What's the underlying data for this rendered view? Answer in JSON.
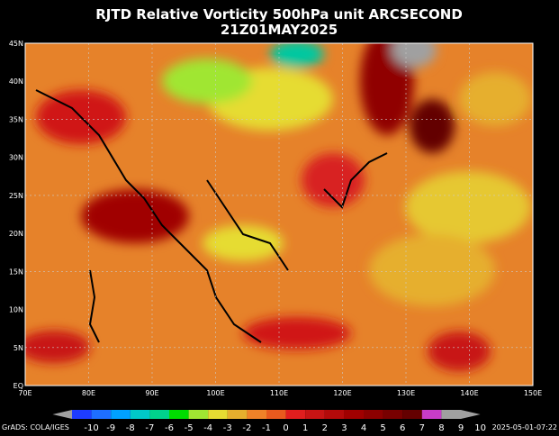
{
  "title": {
    "line1": "RJTD Relative Vorticity 500hPa unit ARCSECOND",
    "line2": "21Z01MAY2025"
  },
  "lat_labels": [
    "EQ",
    "5N",
    "10N",
    "15N",
    "20N",
    "25N",
    "30N",
    "35N",
    "40N",
    "45N"
  ],
  "lon_labels": [
    "70E",
    "80E",
    "90E",
    "100E",
    "110E",
    "120E",
    "130E",
    "140E",
    "150E"
  ],
  "colorbar": {
    "labels": [
      -10,
      -9,
      -8,
      -7,
      -6,
      -5,
      -4,
      -3,
      -2,
      -1,
      0,
      1,
      2,
      3,
      4,
      5,
      6,
      7,
      8,
      9,
      10
    ],
    "colors": [
      "#a0a0a0",
      "#1e3cff",
      "#1e6eff",
      "#00a0ff",
      "#00c8c8",
      "#00d28c",
      "#00dc00",
      "#a0e632",
      "#e6dc32",
      "#e6af2d",
      "#f08228",
      "#e85a1e",
      "#e11e1e",
      "#c81414",
      "#b40a0a",
      "#a00000",
      "#8c0000",
      "#780000",
      "#640000",
      "#c83cc8",
      "#a0a0a0",
      "#a0a0a0"
    ]
  },
  "footer": {
    "left": "GrADS: COLA/IGES",
    "right": "2025-05-01-07:22"
  }
}
